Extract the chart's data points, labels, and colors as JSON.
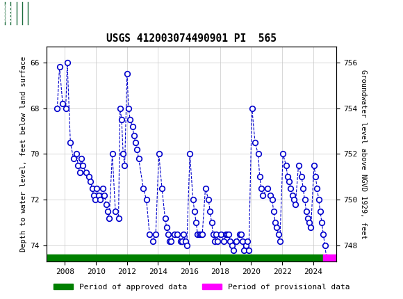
{
  "title": "USGS 412003074490901 PI  565",
  "header_color": "#1a6b3c",
  "ylabel_left": "Depth to water level, feet below land surface",
  "ylabel_right": "Groundwater level above NGVD 1929, feet",
  "ylim_left": [
    74.7,
    65.3
  ],
  "ylim_right": [
    747.3,
    756.7
  ],
  "yticks_left": [
    66.0,
    68.0,
    70.0,
    72.0,
    74.0
  ],
  "yticks_right": [
    748.0,
    750.0,
    752.0,
    754.0,
    756.0
  ],
  "xlim": [
    2006.8,
    2025.5
  ],
  "xticks": [
    2008,
    2010,
    2012,
    2014,
    2016,
    2018,
    2020,
    2022,
    2024
  ],
  "line_color": "#0000cc",
  "marker_color": "#0000cc",
  "approved_color": "#008000",
  "provisional_color": "#ff00ff",
  "background_color": "#ffffff",
  "grid_color": "#c8c8c8",
  "approved_label": "Period of approved data",
  "provisional_label": "Period of provisional data",
  "data_x": [
    2007.5,
    2007.65,
    2007.85,
    2008.05,
    2008.15,
    2008.35,
    2008.55,
    2008.75,
    2008.85,
    2008.95,
    2009.05,
    2009.15,
    2009.35,
    2009.55,
    2009.65,
    2009.75,
    2009.85,
    2009.95,
    2010.05,
    2010.15,
    2010.25,
    2010.45,
    2010.55,
    2010.65,
    2010.75,
    2010.85,
    2011.05,
    2011.25,
    2011.45,
    2011.55,
    2011.65,
    2011.75,
    2011.85,
    2012.0,
    2012.1,
    2012.2,
    2012.35,
    2012.45,
    2012.55,
    2012.65,
    2012.75,
    2013.05,
    2013.25,
    2013.45,
    2013.65,
    2013.85,
    2014.05,
    2014.25,
    2014.45,
    2014.55,
    2014.65,
    2014.75,
    2014.85,
    2015.05,
    2015.25,
    2015.45,
    2015.55,
    2015.65,
    2015.75,
    2015.85,
    2016.05,
    2016.25,
    2016.35,
    2016.45,
    2016.55,
    2016.65,
    2016.75,
    2016.85,
    2017.05,
    2017.25,
    2017.35,
    2017.45,
    2017.55,
    2017.65,
    2017.75,
    2017.85,
    2018.05,
    2018.25,
    2018.35,
    2018.45,
    2018.55,
    2018.65,
    2018.75,
    2018.85,
    2019.05,
    2019.25,
    2019.35,
    2019.45,
    2019.55,
    2019.65,
    2019.75,
    2019.85,
    2020.05,
    2020.25,
    2020.45,
    2020.55,
    2020.65,
    2020.75,
    2021.05,
    2021.25,
    2021.35,
    2021.45,
    2021.55,
    2021.65,
    2021.75,
    2021.85,
    2022.05,
    2022.25,
    2022.35,
    2022.45,
    2022.55,
    2022.65,
    2022.75,
    2022.85,
    2023.05,
    2023.25,
    2023.35,
    2023.45,
    2023.55,
    2023.65,
    2023.75,
    2023.85,
    2024.05,
    2024.15,
    2024.25,
    2024.35,
    2024.45,
    2024.55,
    2024.65,
    2024.75,
    2024.85,
    2024.95
  ],
  "data_y": [
    68.0,
    66.2,
    67.8,
    68.0,
    66.0,
    69.5,
    70.2,
    70.0,
    70.5,
    70.8,
    70.2,
    70.5,
    70.8,
    71.0,
    71.2,
    71.5,
    71.8,
    72.0,
    71.5,
    71.8,
    72.0,
    71.5,
    71.8,
    72.2,
    72.5,
    72.8,
    70.0,
    72.5,
    72.8,
    68.0,
    68.5,
    70.0,
    70.5,
    66.5,
    68.0,
    68.5,
    68.8,
    69.2,
    69.5,
    69.8,
    70.2,
    71.5,
    72.0,
    73.5,
    73.8,
    73.5,
    70.0,
    71.5,
    72.8,
    73.2,
    73.5,
    73.8,
    73.8,
    73.5,
    73.5,
    73.8,
    73.8,
    73.5,
    73.8,
    74.0,
    70.0,
    72.0,
    72.5,
    73.0,
    73.5,
    73.5,
    73.5,
    73.5,
    71.5,
    72.0,
    72.5,
    73.0,
    73.5,
    73.8,
    73.5,
    73.8,
    73.5,
    73.8,
    73.5,
    73.5,
    73.5,
    73.8,
    74.0,
    74.2,
    73.8,
    73.5,
    73.5,
    73.8,
    74.2,
    74.0,
    73.8,
    74.2,
    68.0,
    69.5,
    70.0,
    71.0,
    71.5,
    71.8,
    71.5,
    71.8,
    72.0,
    72.5,
    73.0,
    73.2,
    73.5,
    73.8,
    70.0,
    70.5,
    71.0,
    71.2,
    71.5,
    71.8,
    72.0,
    72.2,
    70.5,
    71.0,
    71.5,
    72.0,
    72.5,
    72.8,
    73.0,
    73.2,
    70.5,
    71.0,
    71.5,
    72.0,
    72.5,
    73.0,
    73.5,
    74.0,
    74.5,
    74.6
  ],
  "approved_xstart": 2006.8,
  "approved_xend": 2024.65,
  "provisional_xstart": 2024.65,
  "provisional_xend": 2025.5
}
